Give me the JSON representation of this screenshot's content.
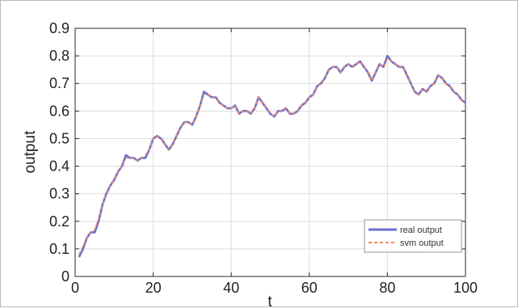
{
  "chart_data": {
    "type": "line",
    "title": "",
    "xlabel": "t",
    "ylabel": "output",
    "xlim": [
      0,
      100
    ],
    "ylim": [
      0,
      0.9
    ],
    "grid": true,
    "legend_position": "bottom-right",
    "x_ticks": [
      "0",
      "20",
      "40",
      "60",
      "80",
      "100"
    ],
    "y_ticks": [
      "0",
      "0.1",
      "0.2",
      "0.3",
      "0.4",
      "0.5",
      "0.6",
      "0.7",
      "0.8",
      "0.9"
    ],
    "x": [
      1,
      2,
      3,
      4,
      5,
      6,
      7,
      8,
      9,
      10,
      11,
      12,
      13,
      14,
      15,
      16,
      17,
      18,
      19,
      20,
      21,
      22,
      23,
      24,
      25,
      26,
      27,
      28,
      29,
      30,
      31,
      32,
      33,
      34,
      35,
      36,
      37,
      38,
      39,
      40,
      41,
      42,
      43,
      44,
      45,
      46,
      47,
      48,
      49,
      50,
      51,
      52,
      53,
      54,
      55,
      56,
      57,
      58,
      59,
      60,
      61,
      62,
      63,
      64,
      65,
      66,
      67,
      68,
      69,
      70,
      71,
      72,
      73,
      74,
      75,
      76,
      77,
      78,
      79,
      80,
      81,
      82,
      83,
      84,
      85,
      86,
      87,
      88,
      89,
      90,
      91,
      92,
      93,
      94,
      95,
      96,
      97,
      98,
      99,
      100
    ],
    "series": [
      {
        "name": "real output",
        "color": "#6b6fd0",
        "values": [
          0.07,
          0.1,
          0.14,
          0.16,
          0.16,
          0.2,
          0.26,
          0.3,
          0.33,
          0.35,
          0.38,
          0.4,
          0.44,
          0.43,
          0.43,
          0.42,
          0.43,
          0.43,
          0.46,
          0.5,
          0.51,
          0.5,
          0.48,
          0.46,
          0.48,
          0.51,
          0.54,
          0.56,
          0.56,
          0.55,
          0.58,
          0.62,
          0.67,
          0.66,
          0.65,
          0.65,
          0.63,
          0.62,
          0.61,
          0.61,
          0.62,
          0.59,
          0.6,
          0.6,
          0.59,
          0.61,
          0.65,
          0.63,
          0.61,
          0.59,
          0.58,
          0.6,
          0.6,
          0.61,
          0.59,
          0.59,
          0.6,
          0.62,
          0.63,
          0.65,
          0.66,
          0.69,
          0.7,
          0.72,
          0.75,
          0.76,
          0.76,
          0.74,
          0.76,
          0.77,
          0.76,
          0.77,
          0.78,
          0.76,
          0.74,
          0.71,
          0.74,
          0.77,
          0.76,
          0.8,
          0.78,
          0.77,
          0.76,
          0.76,
          0.73,
          0.7,
          0.67,
          0.66,
          0.68,
          0.67,
          0.69,
          0.7,
          0.73,
          0.72,
          0.7,
          0.69,
          0.67,
          0.66,
          0.64,
          0.63
        ]
      },
      {
        "name": "svm output",
        "color": "#f08a5a",
        "values": [
          0.08,
          0.11,
          0.14,
          0.16,
          0.17,
          0.21,
          0.26,
          0.3,
          0.33,
          0.35,
          0.38,
          0.4,
          0.43,
          0.43,
          0.43,
          0.42,
          0.43,
          0.44,
          0.46,
          0.5,
          0.51,
          0.5,
          0.48,
          0.46,
          0.48,
          0.51,
          0.54,
          0.56,
          0.56,
          0.55,
          0.58,
          0.62,
          0.66,
          0.66,
          0.65,
          0.65,
          0.63,
          0.62,
          0.61,
          0.61,
          0.62,
          0.59,
          0.6,
          0.6,
          0.59,
          0.61,
          0.65,
          0.63,
          0.61,
          0.59,
          0.58,
          0.6,
          0.6,
          0.61,
          0.59,
          0.59,
          0.6,
          0.62,
          0.63,
          0.65,
          0.66,
          0.69,
          0.7,
          0.72,
          0.75,
          0.76,
          0.76,
          0.74,
          0.76,
          0.77,
          0.76,
          0.77,
          0.78,
          0.76,
          0.74,
          0.71,
          0.74,
          0.77,
          0.76,
          0.79,
          0.78,
          0.77,
          0.76,
          0.76,
          0.73,
          0.7,
          0.67,
          0.66,
          0.68,
          0.67,
          0.69,
          0.7,
          0.73,
          0.72,
          0.7,
          0.69,
          0.67,
          0.66,
          0.64,
          0.63
        ]
      }
    ]
  }
}
